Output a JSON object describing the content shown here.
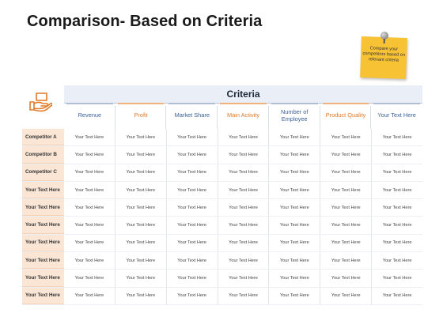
{
  "page": {
    "title": "Comparison- Based on Criteria"
  },
  "note": {
    "text": "Compare your competitors based on relevant criteria"
  },
  "table": {
    "group_title": "Criteria",
    "columns": [
      {
        "label": "Revenue",
        "accent": "blue"
      },
      {
        "label": "Profit",
        "accent": "orange"
      },
      {
        "label": "Market Share",
        "accent": "blue"
      },
      {
        "label": "Main Activity",
        "accent": "orange"
      },
      {
        "label": "Number of Employee",
        "accent": "blue"
      },
      {
        "label": "Product Quality",
        "accent": "orange"
      },
      {
        "label": "Your Text Here",
        "accent": "blue"
      }
    ],
    "rows": [
      {
        "label": "Competitor A",
        "cells": [
          "Your Text Here",
          "Your Text Here",
          "Your Text Here",
          "Your Text Here",
          "Your Text Here",
          "Your Text Here",
          "Your Text Here"
        ]
      },
      {
        "label": "Competitor B",
        "cells": [
          "Your Text Here",
          "Your Text Here",
          "Your Text Here",
          "Your Text Here",
          "Your Text Here",
          "Your Text Here",
          "Your Text Here"
        ]
      },
      {
        "label": "Competitor C",
        "cells": [
          "Your Text Here",
          "Your Text Here",
          "Your Text Here",
          "Your Text Here",
          "Your Text Here",
          "Your Text Here",
          "Your Text Here"
        ]
      },
      {
        "label": "Your Text Here",
        "cells": [
          "Your Text Here",
          "Your Text Here",
          "Your Text Here",
          "Your Text Here",
          "Your Text Here",
          "Your Text Here",
          "Your Text Here"
        ]
      },
      {
        "label": "Your Text Here",
        "cells": [
          "Your Text Here",
          "Your Text Here",
          "Your Text Here",
          "Your Text Here",
          "Your Text Here",
          "Your Text Here",
          "Your Text Here"
        ]
      },
      {
        "label": "Your Text Here",
        "cells": [
          "Your Text Here",
          "Your Text Here",
          "Your Text Here",
          "Your Text Here",
          "Your Text Here",
          "Your Text Here",
          "Your Text Here"
        ]
      },
      {
        "label": "Your Text Here",
        "cells": [
          "Your Text Here",
          "Your Text Here",
          "Your Text Here",
          "Your Text Here",
          "Your Text Here",
          "Your Text Here",
          "Your Text Here"
        ]
      },
      {
        "label": "Your Text Here",
        "cells": [
          "Your Text Here",
          "Your Text Here",
          "Your Text Here",
          "Your Text Here",
          "Your Text Here",
          "Your Text Here",
          "Your Text Here"
        ]
      },
      {
        "label": "Your Text Here",
        "cells": [
          "Your Text Here",
          "Your Text Here",
          "Your Text Here",
          "Your Text Here",
          "Your Text Here",
          "Your Text Here",
          "Your Text Here"
        ]
      },
      {
        "label": "Your Text Here",
        "cells": [
          "Your Text Here",
          "Your Text Here",
          "Your Text Here",
          "Your Text Here",
          "Your Text Here",
          "Your Text Here",
          "Your Text Here"
        ]
      }
    ]
  },
  "colors": {
    "accent_blue": "#3a5f9a",
    "accent_orange": "#e07b2a",
    "row_label_bg": "#fbe6d5",
    "note": "#f7c233"
  },
  "icons": {
    "hand": "hand-holding-box-icon",
    "pin": "pushpin-icon"
  }
}
